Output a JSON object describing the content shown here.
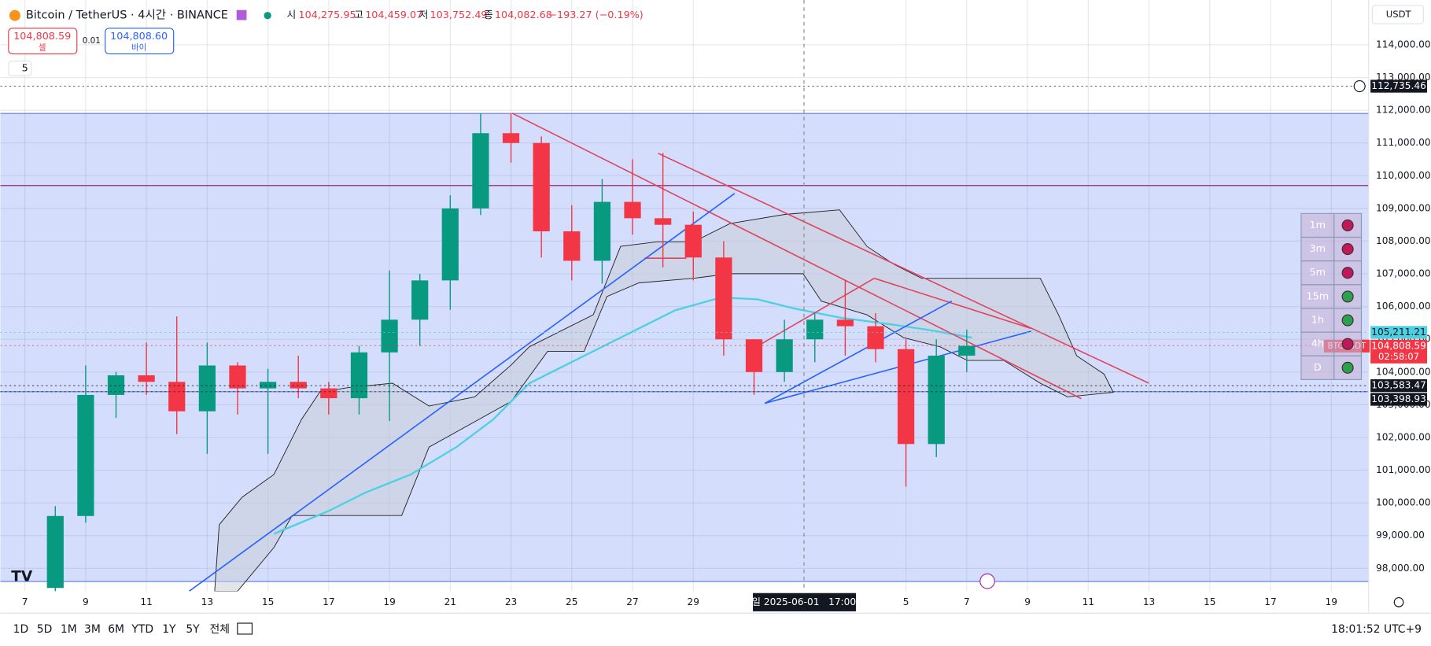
{
  "header": {
    "symbol": "Bitcoin / TetherUS · 4시간 · BINANCE",
    "o_label": "시",
    "o": "104,275.95",
    "h_label": "고",
    "h": "104,459.07",
    "l_label": "저",
    "l": "103,752.49",
    "c_label": "종",
    "c": "104,082.68",
    "change": "−193.27 (−0.19%)"
  },
  "order": {
    "sell_price": "104,808.59",
    "sell": "셀",
    "spread": "0.01",
    "buy_price": "104,808.60",
    "buy": "바이",
    "indicators": "5"
  },
  "currency": "USDT",
  "crosshair": "일 2025-06-01   17:00",
  "timeframes": [
    "1D",
    "5D",
    "1M",
    "3M",
    "6M",
    "YTD",
    "1Y",
    "5Y",
    "전체"
  ],
  "clock": "18:01:52 UTC+9",
  "chart_data": {
    "type": "candlestick",
    "ylim": [
      97300,
      115370
    ],
    "yticks": [
      {
        "value": 98000,
        "label": "98,000.00"
      },
      {
        "value": 99000,
        "label": "99,000.00"
      },
      {
        "value": 100000,
        "label": "100,000.00"
      },
      {
        "value": 101000,
        "label": "101,000.00"
      },
      {
        "value": 102000,
        "label": "102,000.00"
      },
      {
        "value": 103000,
        "label": "103,000.00"
      },
      {
        "value": 104000,
        "label": "104,000.00"
      },
      {
        "value": 105000,
        "label": "105,000.00"
      },
      {
        "value": 106000,
        "label": "106,000.00"
      },
      {
        "value": 107000,
        "label": "107,000.00"
      },
      {
        "value": 108000,
        "label": "108,000.00"
      },
      {
        "value": 109000,
        "label": "109,000.00"
      },
      {
        "value": 110000,
        "label": "110,000.00"
      },
      {
        "value": 111000,
        "label": "111,000.00"
      },
      {
        "value": 112000,
        "label": "112,000.00"
      },
      {
        "value": 113000,
        "label": "113,000.00"
      },
      {
        "value": 114000,
        "label": "114,000.00"
      }
    ],
    "xlim": [
      -0.81,
      44.23
    ],
    "xticks": [
      {
        "value": 0,
        "label": "7"
      },
      {
        "value": 2,
        "label": "9"
      },
      {
        "value": 4,
        "label": "11"
      },
      {
        "value": 6,
        "label": "13"
      },
      {
        "value": 8,
        "label": "15"
      },
      {
        "value": 10,
        "label": "17"
      },
      {
        "value": 12,
        "label": "19"
      },
      {
        "value": 14,
        "label": "21"
      },
      {
        "value": 16,
        "label": "23"
      },
      {
        "value": 18,
        "label": "25"
      },
      {
        "value": 20,
        "label": "27"
      },
      {
        "value": 22,
        "label": "29"
      },
      {
        "value": 29,
        "label": "5"
      },
      {
        "value": 31,
        "label": "7"
      },
      {
        "value": 33,
        "label": "9"
      },
      {
        "value": 35,
        "label": "11"
      },
      {
        "value": 37,
        "label": "13"
      },
      {
        "value": 39,
        "label": "15"
      },
      {
        "value": 41,
        "label": "17"
      },
      {
        "value": 43,
        "label": "19"
      }
    ],
    "up_color": "#089981",
    "down_color": "#f23645",
    "x": [
      1,
      2,
      3,
      4,
      5,
      6,
      7,
      8,
      9,
      10,
      11,
      12,
      13,
      14,
      15,
      16,
      17,
      18,
      19,
      20,
      21,
      22,
      23,
      24,
      25,
      26,
      27,
      28,
      29,
      30,
      31
    ],
    "open": [
      97400,
      99600,
      103300,
      103900,
      103700,
      102800,
      104200,
      103500,
      103700,
      103500,
      103200,
      104600,
      105600,
      106800,
      109000,
      111300,
      111000,
      108300,
      107400,
      109200,
      108700,
      108500,
      107500,
      105000,
      104000,
      105000,
      105600,
      105400,
      104700,
      101800,
      104500
    ],
    "high": [
      99900,
      104200,
      104000,
      104900,
      105700,
      104900,
      104300,
      104100,
      104500,
      103700,
      104800,
      107100,
      107000,
      109400,
      111900,
      111900,
      111200,
      109100,
      109900,
      110500,
      110700,
      108900,
      108000,
      105000,
      105600,
      105800,
      106800,
      105800,
      105000,
      105000,
      105300
    ],
    "low": [
      97200,
      99400,
      102600,
      103300,
      102100,
      101500,
      102700,
      101500,
      103200,
      102700,
      102700,
      102500,
      104800,
      105900,
      108800,
      110400,
      107500,
      106800,
      106700,
      108200,
      107200,
      106800,
      104500,
      103300,
      103700,
      104300,
      104500,
      104300,
      100500,
      101400,
      104000
    ],
    "close": [
      99600,
      103300,
      103900,
      103700,
      102800,
      104200,
      103500,
      103700,
      103500,
      103200,
      104600,
      105600,
      106800,
      109000,
      111300,
      111000,
      108300,
      107400,
      109200,
      108700,
      108500,
      107500,
      105000,
      104000,
      105000,
      105600,
      105400,
      104700,
      101800,
      104500,
      104800
    ],
    "price_labels": [
      {
        "value": 112735.46,
        "label": "112,735.46",
        "color": "#131722"
      },
      {
        "value": 105211.21,
        "label": "105,211.21",
        "color": "#4dd0e1"
      },
      {
        "value": 104808.59,
        "label": "104,808.59",
        "color": "#f23645",
        "countdown": "02:58:07",
        "tag": "BTCUSDT"
      },
      {
        "value": 103583.47,
        "label": "103,583.47",
        "color": "#131722"
      },
      {
        "value": 103398.93,
        "label": "103,398.93",
        "color": "#131722"
      }
    ],
    "levels": [
      {
        "value": 111900,
        "color": "#7e95e6"
      },
      {
        "value": 109700,
        "color": "#9c3f83"
      },
      {
        "value": 103400,
        "color": "#7e95e6"
      },
      {
        "value": 97600,
        "color": "#7e95e6"
      }
    ],
    "zone": [
      97600,
      111900
    ],
    "status": [
      {
        "tf": "1m",
        "color": "#c2185b"
      },
      {
        "tf": "3m",
        "color": "#c2185b"
      },
      {
        "tf": "5m",
        "color": "#c2185b"
      },
      {
        "tf": "15m",
        "color": "#2e9e4f"
      },
      {
        "tf": "1h",
        "color": "#2e9e4f"
      },
      {
        "tf": "4h",
        "color": "#c2185b"
      },
      {
        "tf": "D",
        "color": "#2e9e4f"
      }
    ]
  }
}
